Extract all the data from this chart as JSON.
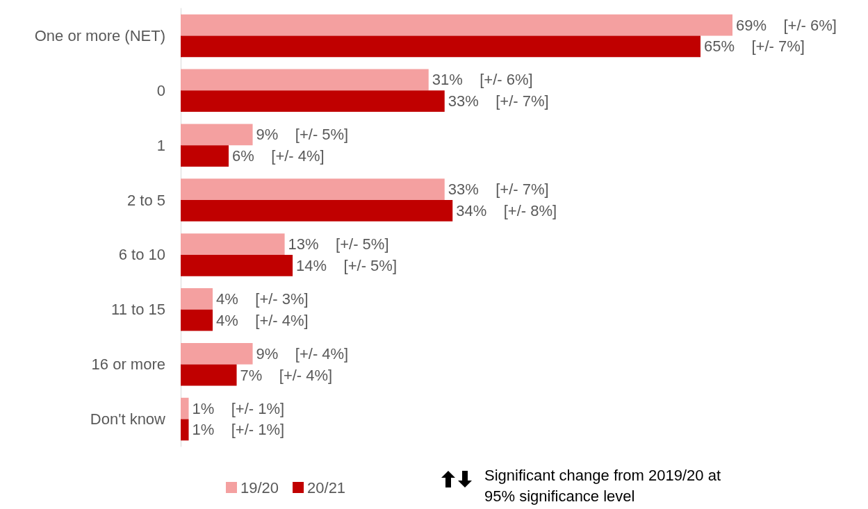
{
  "chart_data": {
    "type": "bar",
    "orientation": "horizontal",
    "categories": [
      "One or more (NET)",
      "0",
      "1",
      "2 to 5",
      "6 to 10",
      "11 to 15",
      "16 or more",
      "Don't know"
    ],
    "series": [
      {
        "name": "19/20",
        "color": "#f4a0a0",
        "values": [
          69,
          31,
          9,
          33,
          13,
          4,
          9,
          1
        ],
        "value_labels": [
          "69%    [+/- 6%]",
          "31%    [+/- 6%]",
          "9%    [+/- 5%]",
          "33%    [+/- 7%]",
          "13%    [+/- 5%]",
          "4%    [+/- 3%]",
          "9%    [+/- 4%]",
          "1%    [+/- 1%]"
        ]
      },
      {
        "name": "20/21",
        "color": "#c00000",
        "values": [
          65,
          33,
          6,
          34,
          14,
          4,
          7,
          1
        ],
        "value_labels": [
          "65%    [+/- 7%]",
          "33%    [+/- 7%]",
          "6%    [+/- 4%]",
          "34%    [+/- 8%]",
          "14%    [+/- 5%]",
          "4%    [+/- 4%]",
          "7%    [+/- 4%]",
          "1%    [+/- 1%]"
        ]
      }
    ],
    "legend": "bottom",
    "annotations": [
      "Significant change from 2019/20 at 95% significance level"
    ]
  }
}
